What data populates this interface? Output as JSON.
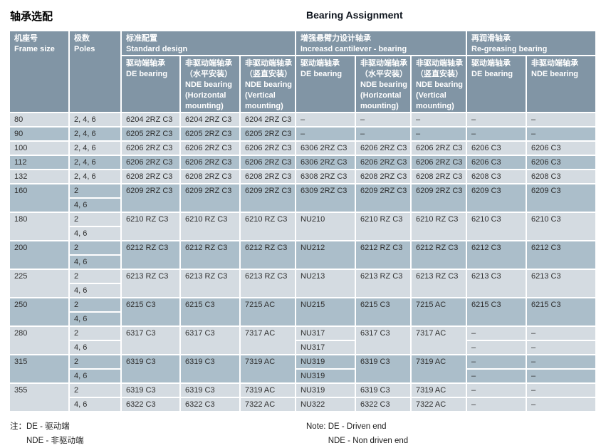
{
  "titles": {
    "zh": "轴承选配",
    "en": "Bearing Assignment"
  },
  "colors": {
    "header_bg": "#8195a5",
    "row_light": "#d4dbe1",
    "row_dark": "#abbeca",
    "header_text": "#ffffff",
    "body_text": "#2e2e2e"
  },
  "table": {
    "header": {
      "frame_text": "机座号\nFrame size",
      "poles_text": "极数\nPoles",
      "groups": [
        {
          "text": "标准配置\nStandard design"
        },
        {
          "text": "增强悬臂力设计轴承\nIncreasd cantilever - bearing"
        },
        {
          "text": "再润滑轴承\nRe-greasing bearing"
        }
      ],
      "subcols": [
        {
          "text": "驱动端轴承\nDE bearing"
        },
        {
          "text": "非驱动端轴承\n（水平安装）\nNDE bearing\n(Horizontal\nmounting)"
        },
        {
          "text": "非驱动端轴承\n（竖直安装）\nNDE bearing\n(Vertical\nmounting)"
        },
        {
          "text": "驱动端轴承\nDE bearing"
        },
        {
          "text": "非驱动端轴承\n（水平安装）\nNDE bearing\n(Horizontal\nmounting)"
        },
        {
          "text": "非驱动端轴承\n（竖直安装）\nNDE bearing\n(Vertical\nmounting)"
        },
        {
          "text": "驱动端轴承\nDE bearing"
        },
        {
          "text": "非驱动端轴承\nNDE bearing"
        }
      ]
    },
    "rows": [
      {
        "frame": "80",
        "shade": "light",
        "poles": [
          "2, 4, 6"
        ],
        "cols": [
          [
            "6204 2RZ C3"
          ],
          [
            "6204 2RZ C3"
          ],
          [
            "6204 2RZ C3"
          ],
          [
            "–"
          ],
          [
            "–"
          ],
          [
            "–"
          ],
          [
            "–"
          ],
          [
            "–"
          ]
        ]
      },
      {
        "frame": "90",
        "shade": "dark",
        "poles": [
          "2, 4, 6"
        ],
        "cols": [
          [
            "6205 2RZ C3"
          ],
          [
            "6205 2RZ C3"
          ],
          [
            "6205 2RZ C3"
          ],
          [
            "–"
          ],
          [
            "–"
          ],
          [
            "–"
          ],
          [
            "–"
          ],
          [
            "–"
          ]
        ]
      },
      {
        "frame": "100",
        "shade": "light",
        "poles": [
          "2, 4, 6"
        ],
        "cols": [
          [
            "6206 2RZ C3"
          ],
          [
            "6206 2RZ C3"
          ],
          [
            "6206 2RZ C3"
          ],
          [
            "6306 2RZ C3"
          ],
          [
            "6206 2RZ C3"
          ],
          [
            "6206 2RZ C3"
          ],
          [
            "6206  C3"
          ],
          [
            "6206  C3"
          ]
        ]
      },
      {
        "frame": "112",
        "shade": "dark",
        "poles": [
          "2, 4, 6"
        ],
        "cols": [
          [
            "6206 2RZ C3"
          ],
          [
            "6206 2RZ C3"
          ],
          [
            "6206 2RZ C3"
          ],
          [
            "6306 2RZ C3"
          ],
          [
            "6206 2RZ C3"
          ],
          [
            "6206 2RZ C3"
          ],
          [
            "6206  C3"
          ],
          [
            "6206  C3"
          ]
        ]
      },
      {
        "frame": "132",
        "shade": "light",
        "poles": [
          "2, 4, 6"
        ],
        "cols": [
          [
            "6208 2RZ C3"
          ],
          [
            "6208 2RZ C3"
          ],
          [
            "6208 2RZ C3"
          ],
          [
            "6308 2RZ C3"
          ],
          [
            "6208 2RZ C3"
          ],
          [
            "6208 2RZ C3"
          ],
          [
            "6208  C3"
          ],
          [
            "6208  C3"
          ]
        ]
      },
      {
        "frame": "160",
        "shade": "dark",
        "poles": [
          "2",
          "4, 6"
        ],
        "cols": [
          [
            "6209 2RZ C3"
          ],
          [
            "6209 2RZ C3"
          ],
          [
            "6209 2RZ C3"
          ],
          [
            "6309 2RZ C3"
          ],
          [
            "6209 2RZ C3"
          ],
          [
            "6209 2RZ C3"
          ],
          [
            "6209  C3"
          ],
          [
            "6209  C3"
          ]
        ]
      },
      {
        "frame": "180",
        "shade": "light",
        "poles": [
          "2",
          "4, 6"
        ],
        "cols": [
          [
            "6210 RZ C3"
          ],
          [
            "6210 RZ C3"
          ],
          [
            "6210 RZ C3"
          ],
          [
            "NU210"
          ],
          [
            "6210 RZ C3"
          ],
          [
            "6210 RZ C3"
          ],
          [
            "6210  C3"
          ],
          [
            "6210  C3"
          ]
        ]
      },
      {
        "frame": "200",
        "shade": "dark",
        "poles": [
          "2",
          "4, 6"
        ],
        "cols": [
          [
            "6212 RZ C3"
          ],
          [
            "6212 RZ C3"
          ],
          [
            "6212 RZ C3"
          ],
          [
            "NU212"
          ],
          [
            "6212 RZ C3"
          ],
          [
            "6212 RZ C3"
          ],
          [
            "6212  C3"
          ],
          [
            "6212  C3"
          ]
        ]
      },
      {
        "frame": "225",
        "shade": "light",
        "poles": [
          "2",
          "4, 6"
        ],
        "cols": [
          [
            "6213 RZ C3"
          ],
          [
            "6213 RZ C3"
          ],
          [
            "6213 RZ C3"
          ],
          [
            "NU213"
          ],
          [
            "6213 RZ C3"
          ],
          [
            "6213 RZ C3"
          ],
          [
            "6213  C3"
          ],
          [
            "6213  C3"
          ]
        ]
      },
      {
        "frame": "250",
        "shade": "dark",
        "poles": [
          "2",
          "4, 6"
        ],
        "cols": [
          [
            "6215 C3"
          ],
          [
            "6215 C3"
          ],
          [
            "7215 AC"
          ],
          [
            "NU215"
          ],
          [
            "6215 C3"
          ],
          [
            "7215 AC"
          ],
          [
            "6215 C3"
          ],
          [
            "6215 C3"
          ]
        ]
      },
      {
        "frame": "280",
        "shade": "light",
        "poles": [
          "2",
          "4, 6"
        ],
        "cols": [
          [
            "6317 C3"
          ],
          [
            "6317 C3"
          ],
          [
            "7317 AC"
          ],
          [
            "NU317",
            "NU317"
          ],
          [
            "6317 C3"
          ],
          [
            "7317 AC"
          ],
          [
            "–",
            "–"
          ],
          [
            "–",
            "–"
          ]
        ]
      },
      {
        "frame": "315",
        "shade": "dark",
        "poles": [
          "2",
          "4, 6"
        ],
        "cols": [
          [
            "6319 C3"
          ],
          [
            "6319 C3"
          ],
          [
            "7319 AC"
          ],
          [
            "NU319",
            "NU319"
          ],
          [
            "6319 C3"
          ],
          [
            "7319 AC"
          ],
          [
            "–",
            "–"
          ],
          [
            "–",
            "–"
          ]
        ]
      },
      {
        "frame": "355",
        "shade": "light",
        "poles": [
          "2",
          "4, 6"
        ],
        "cols": [
          [
            "6319 C3",
            "6322 C3"
          ],
          [
            "6319 C3",
            "6322 C3"
          ],
          [
            "7319 AC",
            "7322 AC"
          ],
          [
            "NU319",
            "NU322"
          ],
          [
            "6319 C3",
            "6322 C3"
          ],
          [
            "7319 AC",
            "7322 AC"
          ],
          [
            "–",
            "–"
          ],
          [
            "–",
            "–"
          ]
        ]
      }
    ]
  },
  "notes": {
    "zh_label": "注：",
    "zh_text": "DE - 驱动端\nNDE - 非驱动端",
    "en_label": "Note: ",
    "en_text": "DE - Driven end\nNDE - Non driven end"
  }
}
